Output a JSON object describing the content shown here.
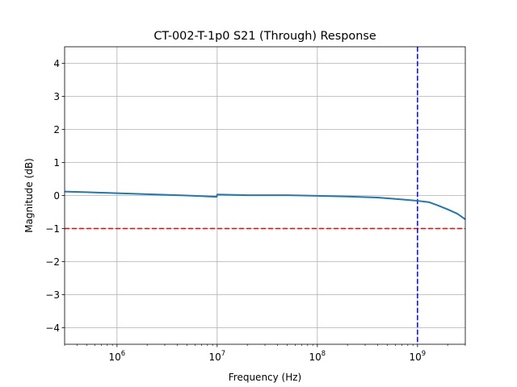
{
  "chart_data": {
    "type": "line",
    "title": "CT-002-T-1p0 S21 (Through) Response",
    "xlabel": "Frequency (Hz)",
    "ylabel": "Magnitude (dB)",
    "x_scale": "log",
    "xlim": [
      300000,
      3000000000
    ],
    "ylim": [
      -4.5,
      4.5
    ],
    "grid": true,
    "x_ticks": [
      {
        "base": "10",
        "exp": "6",
        "value": 1000000
      },
      {
        "base": "10",
        "exp": "7",
        "value": 10000000
      },
      {
        "base": "10",
        "exp": "8",
        "value": 100000000
      },
      {
        "base": "10",
        "exp": "9",
        "value": 1000000000
      }
    ],
    "y_ticks": [
      {
        "label": "4",
        "value": 4
      },
      {
        "label": "3",
        "value": 3
      },
      {
        "label": "2",
        "value": 2
      },
      {
        "label": "1",
        "value": 1
      },
      {
        "label": "0",
        "value": 0
      },
      {
        "label": "−1",
        "value": -1
      },
      {
        "label": "−2",
        "value": -2
      },
      {
        "label": "−3",
        "value": -3
      },
      {
        "label": "−4",
        "value": -4
      }
    ],
    "series": [
      {
        "color": "#1f77b4",
        "x": [
          300000,
          500000,
          1000000,
          2000000,
          5000000,
          9900000,
          10000000,
          20000000,
          50000000,
          100000000,
          200000000,
          400000000,
          700000000,
          1000000000,
          1300000000,
          1600000000,
          2000000000,
          2500000000,
          3000000000
        ],
        "y": [
          0.12,
          0.1,
          0.07,
          0.04,
          0.0,
          -0.04,
          0.03,
          0.01,
          0.01,
          -0.01,
          -0.03,
          -0.06,
          -0.12,
          -0.16,
          -0.2,
          -0.3,
          -0.42,
          -0.55,
          -0.72
        ]
      }
    ],
    "reference_lines": [
      {
        "orientation": "horizontal",
        "value": -1,
        "color": "#ff0000",
        "style": "dashed"
      },
      {
        "orientation": "vertical",
        "value": 1000000000,
        "color": "#0000ff",
        "style": "dashed"
      }
    ]
  }
}
